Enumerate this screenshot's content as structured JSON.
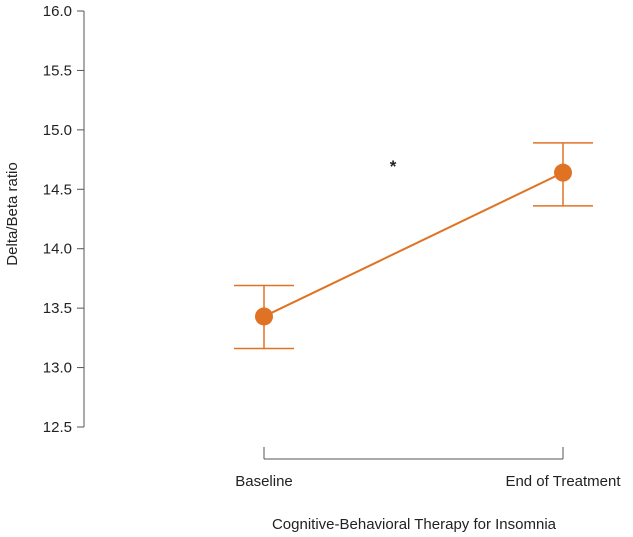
{
  "chart_data": {
    "type": "line",
    "title": "",
    "xlabel": "Cognitive-Behavioral Therapy for Insomnia",
    "ylabel": "Delta/Beta ratio",
    "categories": [
      "Baseline",
      "End of Treatment"
    ],
    "series": [
      {
        "values": [
          13.43,
          14.64
        ],
        "error_low": [
          13.16,
          14.36
        ],
        "error_high": [
          13.69,
          14.89
        ],
        "color": "#E07224"
      }
    ],
    "ylim": [
      12.5,
      16.0
    ],
    "yticks": [
      "12.5",
      "13.0",
      "13.5",
      "14.0",
      "14.5",
      "15.0",
      "15.5",
      "16.0"
    ],
    "grid": false,
    "annotations": [
      {
        "text": "*"
      }
    ]
  }
}
